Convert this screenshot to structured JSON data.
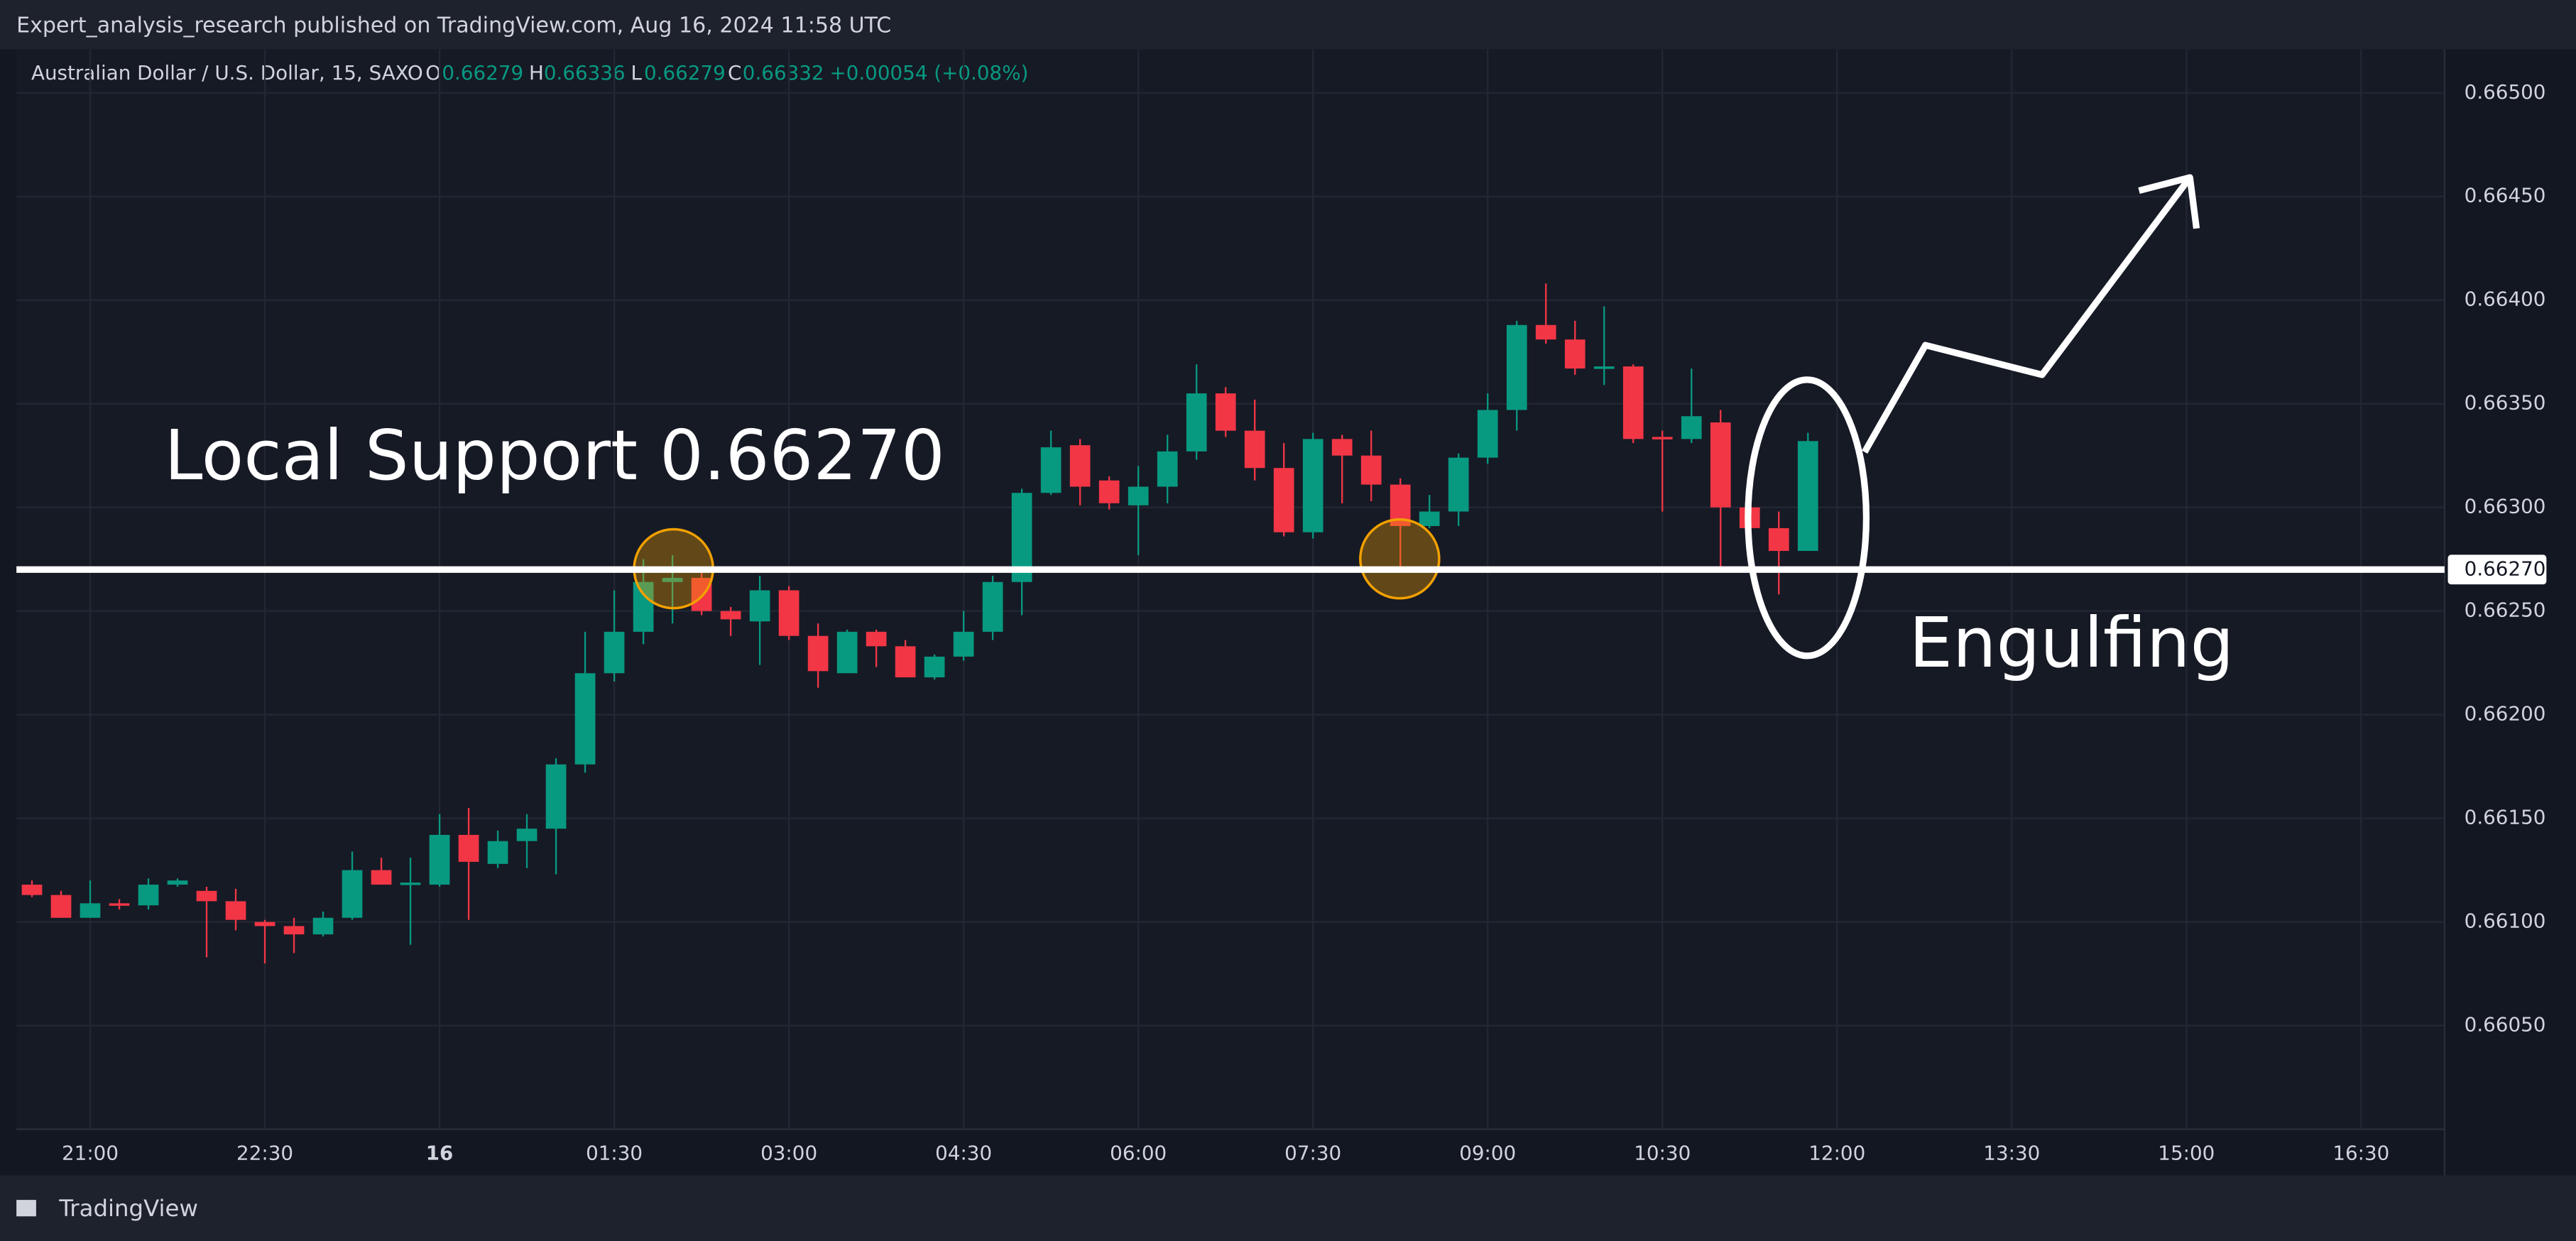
{
  "header": {
    "title": "Expert_analysis_research published on TradingView.com, Aug 16, 2024 11:58 UTC"
  },
  "footer": {
    "brand": "TradingView"
  },
  "chart_data": {
    "type": "candlestick",
    "legend": {
      "symbol": "Australian Dollar / U.S. Dollar, 15, SAXO",
      "o_label": "O",
      "open": "0.66279",
      "h_label": "H",
      "high": "0.66336",
      "l_label": "L",
      "low": "0.66279",
      "c_label": "C",
      "close": "0.66332",
      "change": "+0.00054 (+0.08%)"
    },
    "up_color": "#089981",
    "down_color": "#f23645",
    "x": [
      "20:30",
      "20:45",
      "21:00",
      "21:15",
      "21:30",
      "21:45",
      "22:00",
      "22:15",
      "22:30",
      "22:45",
      "23:00",
      "23:15",
      "23:30",
      "23:45",
      "00:00",
      "00:15",
      "00:30",
      "00:45",
      "01:00",
      "01:15",
      "01:30",
      "01:45",
      "02:00",
      "02:15",
      "02:30",
      "02:45",
      "03:00",
      "03:15",
      "03:30",
      "03:45",
      "04:00",
      "04:15",
      "04:30",
      "04:45",
      "05:00",
      "05:15",
      "05:30",
      "05:45",
      "06:00",
      "06:15",
      "06:30",
      "06:45",
      "07:00",
      "07:15",
      "07:30",
      "07:45",
      "08:00",
      "08:15",
      "08:30",
      "08:45",
      "09:00",
      "09:15",
      "09:30",
      "09:45",
      "10:00",
      "10:15",
      "10:30",
      "10:45",
      "11:00",
      "11:15",
      "11:30",
      "11:45"
    ],
    "open": [
      0.66118,
      0.66113,
      0.66102,
      0.66109,
      0.66108,
      0.66118,
      0.66115,
      0.6611,
      0.661,
      0.66098,
      0.66094,
      0.66102,
      0.66125,
      0.66118,
      0.66118,
      0.66142,
      0.66128,
      0.66139,
      0.66145,
      0.66176,
      0.6622,
      0.6624,
      0.66264,
      0.66266,
      0.6625,
      0.66245,
      0.6626,
      0.66238,
      0.6622,
      0.6624,
      0.66233,
      0.66218,
      0.66228,
      0.6624,
      0.66264,
      0.66307,
      0.6633,
      0.66313,
      0.66301,
      0.6631,
      0.66327,
      0.66355,
      0.66337,
      0.66319,
      0.66288,
      0.66333,
      0.66325,
      0.66311,
      0.66291,
      0.66298,
      0.66324,
      0.66347,
      0.66388,
      0.66381,
      0.66367,
      0.66368,
      0.66334,
      0.66333,
      0.66341,
      0.663,
      0.6629,
      0.66279
    ],
    "high": [
      0.6612,
      0.66115,
      0.6612,
      0.66111,
      0.66121,
      0.66121,
      0.66117,
      0.66116,
      0.66101,
      0.66102,
      0.66105,
      0.66134,
      0.66131,
      0.66131,
      0.66152,
      0.66155,
      0.66144,
      0.66152,
      0.66179,
      0.6624,
      0.6626,
      0.66275,
      0.66277,
      0.66271,
      0.66252,
      0.66267,
      0.66262,
      0.66244,
      0.66241,
      0.66241,
      0.66236,
      0.66229,
      0.6625,
      0.66267,
      0.66309,
      0.66337,
      0.66333,
      0.66315,
      0.6632,
      0.66335,
      0.66369,
      0.66358,
      0.66352,
      0.66331,
      0.66336,
      0.66335,
      0.66337,
      0.66314,
      0.66306,
      0.66326,
      0.66355,
      0.6639,
      0.66408,
      0.6639,
      0.66397,
      0.66369,
      0.66337,
      0.66367,
      0.66347,
      0.6631,
      0.66298,
      0.66336
    ],
    "low": [
      0.66112,
      0.66102,
      0.66102,
      0.66106,
      0.66106,
      0.66117,
      0.66083,
      0.66096,
      0.6608,
      0.66085,
      0.66093,
      0.66101,
      0.66118,
      0.66089,
      0.66117,
      0.66101,
      0.66126,
      0.66126,
      0.66123,
      0.66172,
      0.66216,
      0.66234,
      0.66244,
      0.66248,
      0.66238,
      0.66224,
      0.66236,
      0.66213,
      0.6622,
      0.66223,
      0.66218,
      0.66217,
      0.66226,
      0.66236,
      0.66248,
      0.66306,
      0.66301,
      0.66299,
      0.66277,
      0.66302,
      0.66323,
      0.66334,
      0.66313,
      0.66286,
      0.66285,
      0.66302,
      0.66303,
      0.66271,
      0.6629,
      0.66291,
      0.66321,
      0.66337,
      0.66379,
      0.66364,
      0.66359,
      0.66331,
      0.66298,
      0.66331,
      0.66269,
      0.66283,
      0.66258,
      0.66279
    ],
    "close": [
      0.66113,
      0.66102,
      0.66109,
      0.66108,
      0.66118,
      0.6612,
      0.6611,
      0.66101,
      0.66098,
      0.66094,
      0.66102,
      0.66125,
      0.66118,
      0.66119,
      0.66142,
      0.66129,
      0.66139,
      0.66145,
      0.66176,
      0.6622,
      0.6624,
      0.66264,
      0.66266,
      0.6625,
      0.66246,
      0.6626,
      0.66238,
      0.66221,
      0.6624,
      0.66233,
      0.66218,
      0.66228,
      0.6624,
      0.66264,
      0.66307,
      0.66329,
      0.6631,
      0.66302,
      0.6631,
      0.66327,
      0.66355,
      0.66337,
      0.66319,
      0.66288,
      0.66333,
      0.66325,
      0.66311,
      0.66291,
      0.66298,
      0.66324,
      0.66347,
      0.66388,
      0.66381,
      0.66367,
      0.66368,
      0.66333,
      0.66333,
      0.66344,
      0.663,
      0.6629,
      0.66279,
      0.66332
    ],
    "xlim": [
      "20:22",
      "17:13"
    ],
    "xticks": [
      "21:00",
      "22:30",
      {
        "value": "00:00",
        "label": "16"
      },
      "01:30",
      "03:00",
      "04:30",
      "06:00",
      "07:30",
      "09:00",
      "10:30",
      "12:00",
      "13:30",
      "15:00",
      "16:30"
    ],
    "ylim": [
      0.66,
      0.66521
    ],
    "yticks": [
      {
        "value": 0.6605,
        "label": "0.66050"
      },
      {
        "value": 0.661,
        "label": "0.66100"
      },
      {
        "value": 0.6615,
        "label": "0.66150"
      },
      {
        "value": 0.662,
        "label": "0.66200"
      },
      {
        "value": 0.6625,
        "label": "0.66250"
      },
      {
        "value": 0.663,
        "label": "0.66300"
      },
      {
        "value": 0.6635,
        "label": "0.66350"
      },
      {
        "value": 0.664,
        "label": "0.66400"
      },
      {
        "value": 0.6645,
        "label": "0.66450"
      },
      {
        "value": 0.665,
        "label": "0.66500"
      }
    ],
    "grid": true,
    "support_line": {
      "value": 0.6627,
      "label": "0.66270"
    },
    "annotations": [
      "Local Support 0.66270",
      "Engulfing"
    ]
  }
}
